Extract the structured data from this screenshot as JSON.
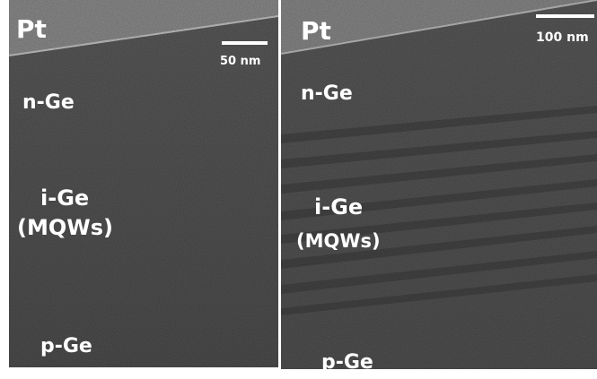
{
  "panels": [
    {
      "top_label": "Pt",
      "scale_bar": "50 nm",
      "layers": {
        "n": "n-Ge",
        "i": "i-Ge",
        "i_note": "(MQWs)",
        "p": "p-Ge"
      }
    },
    {
      "top_label": "Pt",
      "scale_bar": "100 nm",
      "layers": {
        "n": "n-Ge",
        "i": "i-Ge",
        "i_note": "(MQWs)",
        "p": "p-Ge"
      }
    }
  ]
}
